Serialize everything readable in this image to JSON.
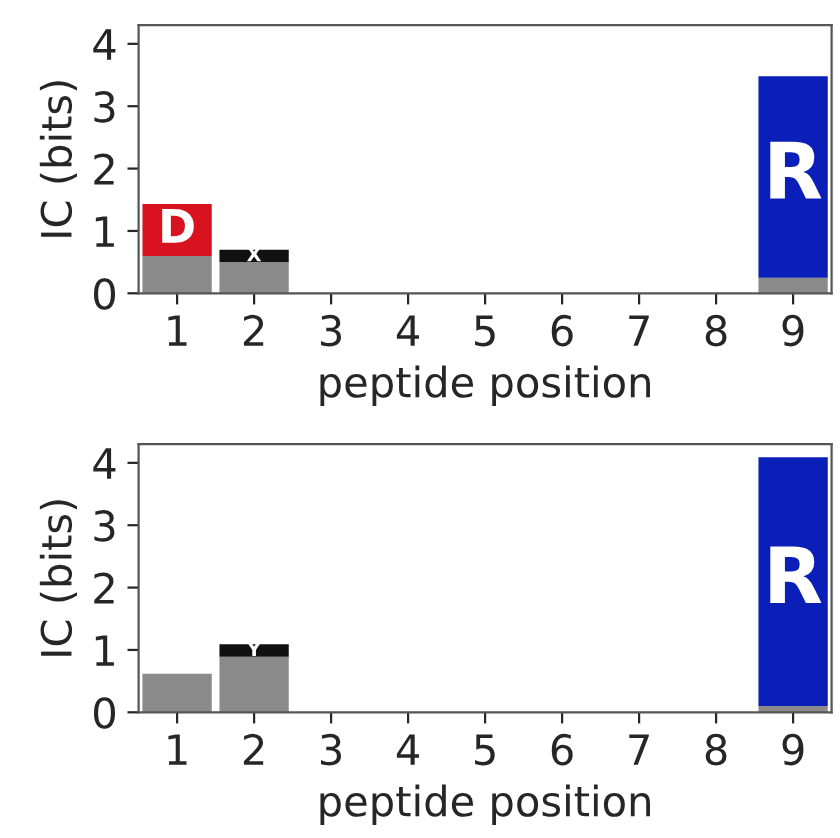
{
  "chart_data": [
    {
      "type": "bar",
      "stacked": true,
      "xlabel": "peptide position",
      "ylabel": "IC (bits)",
      "categories": [
        "1",
        "2",
        "3",
        "4",
        "5",
        "6",
        "7",
        "8",
        "9"
      ],
      "ylim": [
        0,
        4.3
      ],
      "yticks": [
        0,
        1,
        2,
        3,
        4
      ],
      "grid": false,
      "legend": false,
      "series": [
        {
          "color": "#8a8a8a",
          "values": [
            0.6,
            0.5,
            null,
            null,
            null,
            null,
            null,
            null,
            0.25
          ]
        },
        {
          "name": "D",
          "color": "#d8121f",
          "values": [
            0.83,
            null,
            null,
            null,
            null,
            null,
            null,
            null,
            null
          ]
        },
        {
          "name": "X",
          "color": "#111111",
          "values": [
            null,
            0.2,
            null,
            null,
            null,
            null,
            null,
            null,
            null
          ]
        },
        {
          "name": "R",
          "color": "#0a1fb8",
          "values": [
            null,
            null,
            null,
            null,
            null,
            null,
            null,
            null,
            3.23
          ]
        }
      ]
    },
    {
      "type": "bar",
      "stacked": true,
      "xlabel": "peptide position",
      "ylabel": "IC (bits)",
      "categories": [
        "1",
        "2",
        "3",
        "4",
        "5",
        "6",
        "7",
        "8",
        "9"
      ],
      "ylim": [
        0,
        4.3
      ],
      "yticks": [
        0,
        1,
        2,
        3,
        4
      ],
      "grid": false,
      "legend": false,
      "series": [
        {
          "color": "#8a8a8a",
          "values": [
            0.62,
            0.89,
            null,
            null,
            null,
            null,
            null,
            null,
            0.1
          ]
        },
        {
          "name": "Y",
          "color": "#111111",
          "values": [
            null,
            0.2,
            null,
            null,
            null,
            null,
            null,
            null,
            null
          ]
        },
        {
          "name": "R",
          "color": "#0a1fb8",
          "values": [
            null,
            null,
            null,
            null,
            null,
            null,
            null,
            null,
            3.99
          ]
        }
      ]
    }
  ]
}
